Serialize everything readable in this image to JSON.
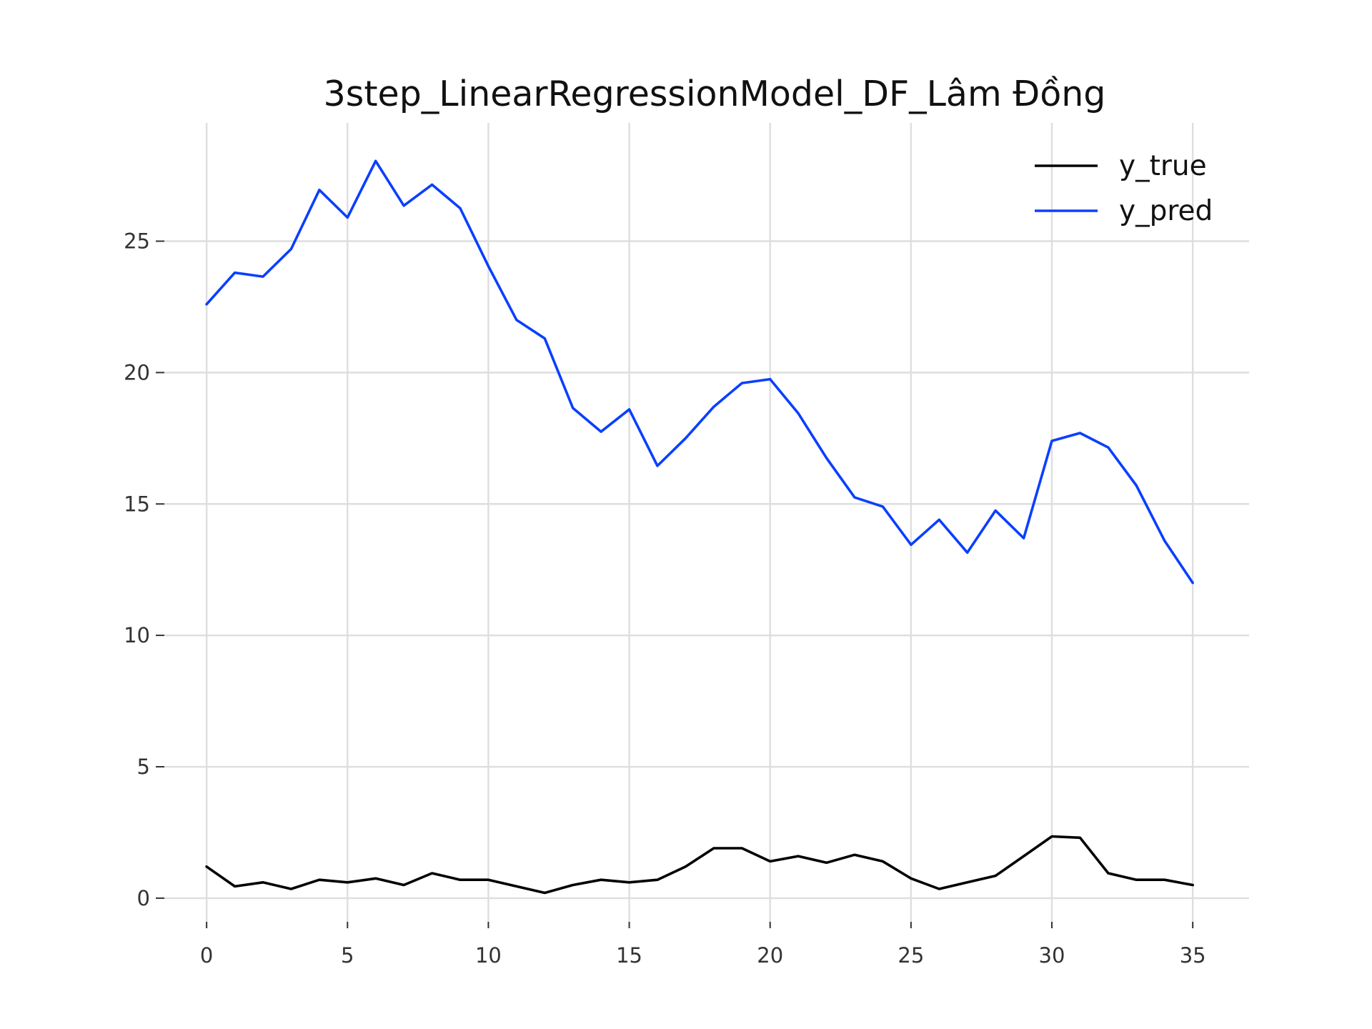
{
  "chart_data": {
    "type": "line",
    "title": "3step_LinearRegressionModel_DF_Lâm Đồng",
    "xlabel": "",
    "ylabel": "",
    "x": [
      0,
      1,
      2,
      3,
      4,
      5,
      6,
      7,
      8,
      9,
      10,
      11,
      12,
      13,
      14,
      15,
      16,
      17,
      18,
      19,
      20,
      21,
      22,
      23,
      24,
      25,
      26,
      27,
      28,
      29,
      30,
      31,
      32,
      33,
      34,
      35
    ],
    "xlim": [
      -1.5,
      37.0
    ],
    "ylim": [
      -0.9,
      29.5
    ],
    "xticks": [
      0,
      5,
      10,
      15,
      20,
      25,
      30,
      35
    ],
    "yticks": [
      0,
      5,
      10,
      15,
      20,
      25
    ],
    "grid": true,
    "legend_position": "top-right",
    "series": [
      {
        "name": "y_true",
        "color": "#000000",
        "values": [
          1.2,
          0.45,
          0.6,
          0.35,
          0.7,
          0.6,
          0.75,
          0.5,
          0.95,
          0.7,
          0.7,
          0.45,
          0.2,
          0.5,
          0.7,
          0.6,
          0.7,
          1.2,
          1.9,
          1.9,
          1.4,
          1.6,
          1.35,
          1.65,
          1.4,
          0.75,
          0.35,
          0.6,
          0.85,
          1.6,
          2.35,
          2.3,
          0.95,
          0.7,
          0.7,
          0.5
        ]
      },
      {
        "name": "y_pred",
        "color": "#0a3fff",
        "values": [
          22.6,
          23.8,
          23.65,
          24.7,
          26.95,
          25.9,
          28.05,
          26.35,
          27.15,
          26.25,
          24.05,
          22.0,
          21.3,
          18.65,
          17.75,
          18.6,
          16.45,
          17.5,
          18.7,
          19.6,
          19.75,
          18.45,
          16.75,
          15.25,
          14.9,
          13.45,
          14.4,
          13.15,
          14.75,
          13.7,
          17.4,
          17.7,
          17.15,
          15.7,
          13.6,
          12.0
        ]
      }
    ]
  }
}
